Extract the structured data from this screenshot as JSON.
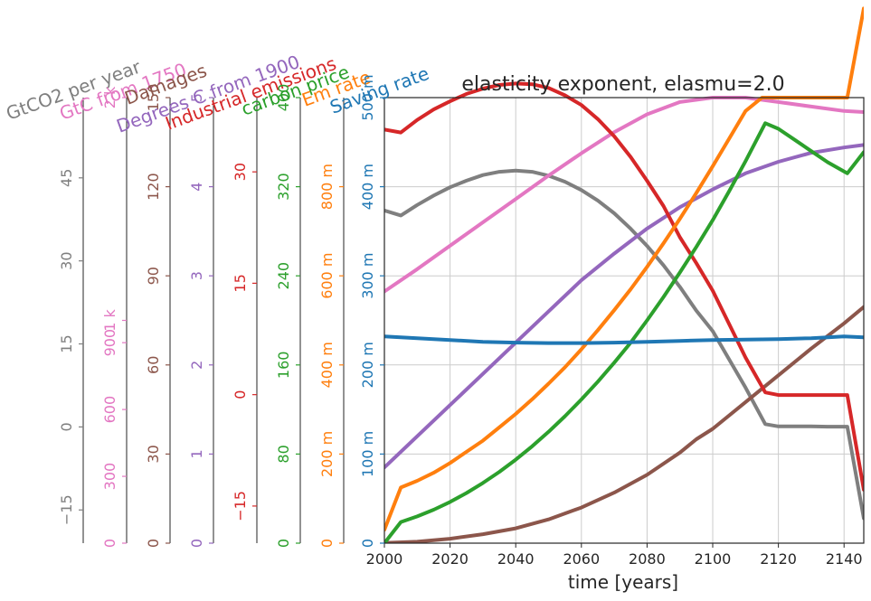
{
  "chart_data": {
    "type": "line",
    "title": "elasticity exponent, elasmu=2.0",
    "xlabel": "time [years]",
    "xlim": [
      2000,
      2146
    ],
    "xticks": [
      "2000",
      "2020",
      "2040",
      "2060",
      "2080",
      "2100",
      "2120",
      "2140"
    ],
    "grid": true,
    "axes": [
      {
        "id": "co2",
        "label": "GtCO2 per year",
        "color": "#7f7f7f",
        "ylim": [
          -21,
          59.5
        ],
        "ticks": [
          "−15",
          "0",
          "15",
          "30",
          "45"
        ]
      },
      {
        "id": "gtc",
        "label": "GtC from 1750",
        "color": "#e377c2",
        "ylim": [
          0,
          2000
        ],
        "ticks": [
          "0",
          "300",
          "600",
          "900",
          "1 k",
          "2 k"
        ]
      },
      {
        "id": "damages",
        "label": "Damages",
        "color": "#8c564b",
        "ylim": [
          0,
          150
        ],
        "ticks": [
          "0",
          "30",
          "60",
          "90",
          "120",
          "150"
        ]
      },
      {
        "id": "degrees",
        "label": "Degrees C from 1900",
        "color": "#9467bd",
        "ylim": [
          0,
          5
        ],
        "ticks": [
          "0",
          "1",
          "2",
          "3",
          "4",
          "5"
        ]
      },
      {
        "id": "industrial",
        "label": "Industrial emissions",
        "color": "#d62728",
        "ylim": [
          -20,
          40
        ],
        "ticks": [
          "−15",
          "0",
          "15",
          "30"
        ]
      },
      {
        "id": "carbon",
        "label": "carbon price",
        "color": "#2ca02c",
        "ylim": [
          0,
          400
        ],
        "ticks": [
          "0",
          "80",
          "160",
          "240",
          "320",
          "400"
        ]
      },
      {
        "id": "em",
        "label": "Em rate",
        "color": "#ff7f0e",
        "ylim": [
          0,
          1
        ],
        "ticks": [
          "0",
          "200 m",
          "400 m",
          "600 m",
          "800 m"
        ]
      },
      {
        "id": "saving",
        "label": "Saving rate",
        "color": "#1f77b4",
        "ylim": [
          0,
          0.5
        ],
        "ticks": [
          "0",
          "100 m",
          "200 m",
          "300 m",
          "400 m",
          "500 m"
        ]
      }
    ],
    "series": [
      {
        "axis": "co2",
        "color": "#7f7f7f",
        "x": [
          2000,
          2005,
          2010,
          2015,
          2020,
          2025,
          2030,
          2035,
          2040,
          2045,
          2050,
          2055,
          2060,
          2065,
          2070,
          2075,
          2080,
          2085,
          2090,
          2095,
          2100,
          2105,
          2110,
          2116,
          2120,
          2125,
          2130,
          2135,
          2140,
          2141,
          2146
        ],
        "y": [
          39.1,
          38.2,
          40.1,
          41.8,
          43.3,
          44.5,
          45.5,
          46.1,
          46.3,
          46.1,
          45.4,
          44.3,
          42.8,
          40.9,
          38.6,
          35.8,
          32.7,
          29.2,
          25.3,
          21.0,
          17.3,
          12.2,
          7.1,
          0.5,
          0.1,
          0.1,
          0.1,
          0.05,
          0.05,
          0.05,
          -16.5
        ]
      },
      {
        "axis": "gtc",
        "color": "#e377c2",
        "x": [
          2000,
          2010,
          2020,
          2030,
          2040,
          2050,
          2060,
          2070,
          2080,
          2090,
          2100,
          2110,
          2120,
          2130,
          2140,
          2146
        ],
        "y": [
          1130,
          1230,
          1335,
          1440,
          1545,
          1650,
          1750,
          1845,
          1925,
          1980,
          2000,
          2000,
          1980,
          1960,
          1940,
          1935
        ]
      },
      {
        "axis": "damages",
        "color": "#8c564b",
        "x": [
          2000,
          2010,
          2020,
          2030,
          2040,
          2050,
          2060,
          2070,
          2080,
          2090,
          2095,
          2100,
          2110,
          2120,
          2130,
          2140,
          2146
        ],
        "y": [
          0.1,
          0.5,
          1.5,
          3.0,
          5.0,
          8.0,
          12.0,
          17.0,
          23.0,
          30.5,
          35.0,
          38.5,
          47.5,
          56.5,
          65.5,
          74.0,
          79.5
        ]
      },
      {
        "axis": "degrees",
        "color": "#9467bd",
        "x": [
          2000,
          2010,
          2020,
          2030,
          2040,
          2050,
          2060,
          2070,
          2080,
          2090,
          2100,
          2110,
          2120,
          2130,
          2140,
          2146
        ],
        "y": [
          0.85,
          1.2,
          1.55,
          1.9,
          2.25,
          2.6,
          2.95,
          3.25,
          3.53,
          3.77,
          3.97,
          4.15,
          4.28,
          4.38,
          4.44,
          4.47
        ]
      },
      {
        "axis": "industrial",
        "color": "#d62728",
        "x": [
          2000,
          2005,
          2010,
          2015,
          2020,
          2025,
          2030,
          2035,
          2040,
          2045,
          2050,
          2055,
          2060,
          2065,
          2070,
          2075,
          2080,
          2085,
          2090,
          2095,
          2100,
          2105,
          2110,
          2116,
          2120,
          2125,
          2130,
          2135,
          2140,
          2141,
          2146
        ],
        "y": [
          35.7,
          35.3,
          37.0,
          38.4,
          39.5,
          40.5,
          41.2,
          41.7,
          41.9,
          41.8,
          41.3,
          40.3,
          39.0,
          37.1,
          34.8,
          32.0,
          28.8,
          25.4,
          21.2,
          17.7,
          14.0,
          9.5,
          5.0,
          0.3,
          -0.05,
          -0.05,
          -0.05,
          -0.05,
          -0.05,
          -0.05,
          -12.8
        ]
      },
      {
        "axis": "carbon",
        "color": "#2ca02c",
        "x": [
          2000,
          2005,
          2010,
          2015,
          2020,
          2025,
          2030,
          2035,
          2040,
          2045,
          2050,
          2055,
          2060,
          2065,
          2070,
          2075,
          2080,
          2085,
          2090,
          2095,
          2100,
          2105,
          2110,
          2116,
          2120,
          2125,
          2130,
          2135,
          2141,
          2146
        ],
        "y": [
          0,
          19,
          24,
          30,
          37,
          45,
          54,
          64,
          75,
          87,
          100,
          114,
          129,
          145,
          162,
          180,
          200,
          221,
          243,
          266,
          290,
          316,
          343,
          377,
          372,
          362,
          352,
          342,
          332,
          351
        ]
      },
      {
        "axis": "em",
        "color": "#ff7f0e",
        "x": [
          2000,
          2005,
          2010,
          2015,
          2020,
          2025,
          2030,
          2035,
          2040,
          2045,
          2050,
          2055,
          2060,
          2065,
          2070,
          2075,
          2080,
          2085,
          2090,
          2095,
          2100,
          2105,
          2110,
          2115,
          2120,
          2125,
          2130,
          2135,
          2141,
          2146
        ],
        "y": [
          0.03,
          0.125,
          0.14,
          0.158,
          0.18,
          0.205,
          0.23,
          0.26,
          0.29,
          0.323,
          0.358,
          0.395,
          0.435,
          0.478,
          0.523,
          0.57,
          0.62,
          0.673,
          0.728,
          0.786,
          0.846,
          0.908,
          0.97,
          1.0,
          1.0,
          1.0,
          1.0,
          1.0,
          1.0,
          1.2
        ]
      },
      {
        "axis": "saving",
        "color": "#1f77b4",
        "x": [
          2000,
          2010,
          2020,
          2030,
          2040,
          2050,
          2060,
          2070,
          2080,
          2090,
          2100,
          2110,
          2120,
          2130,
          2140,
          2146
        ],
        "y": [
          0.232,
          0.23,
          0.228,
          0.226,
          0.225,
          0.2245,
          0.2245,
          0.225,
          0.226,
          0.227,
          0.228,
          0.2285,
          0.229,
          0.23,
          0.232,
          0.231
        ]
      }
    ]
  }
}
